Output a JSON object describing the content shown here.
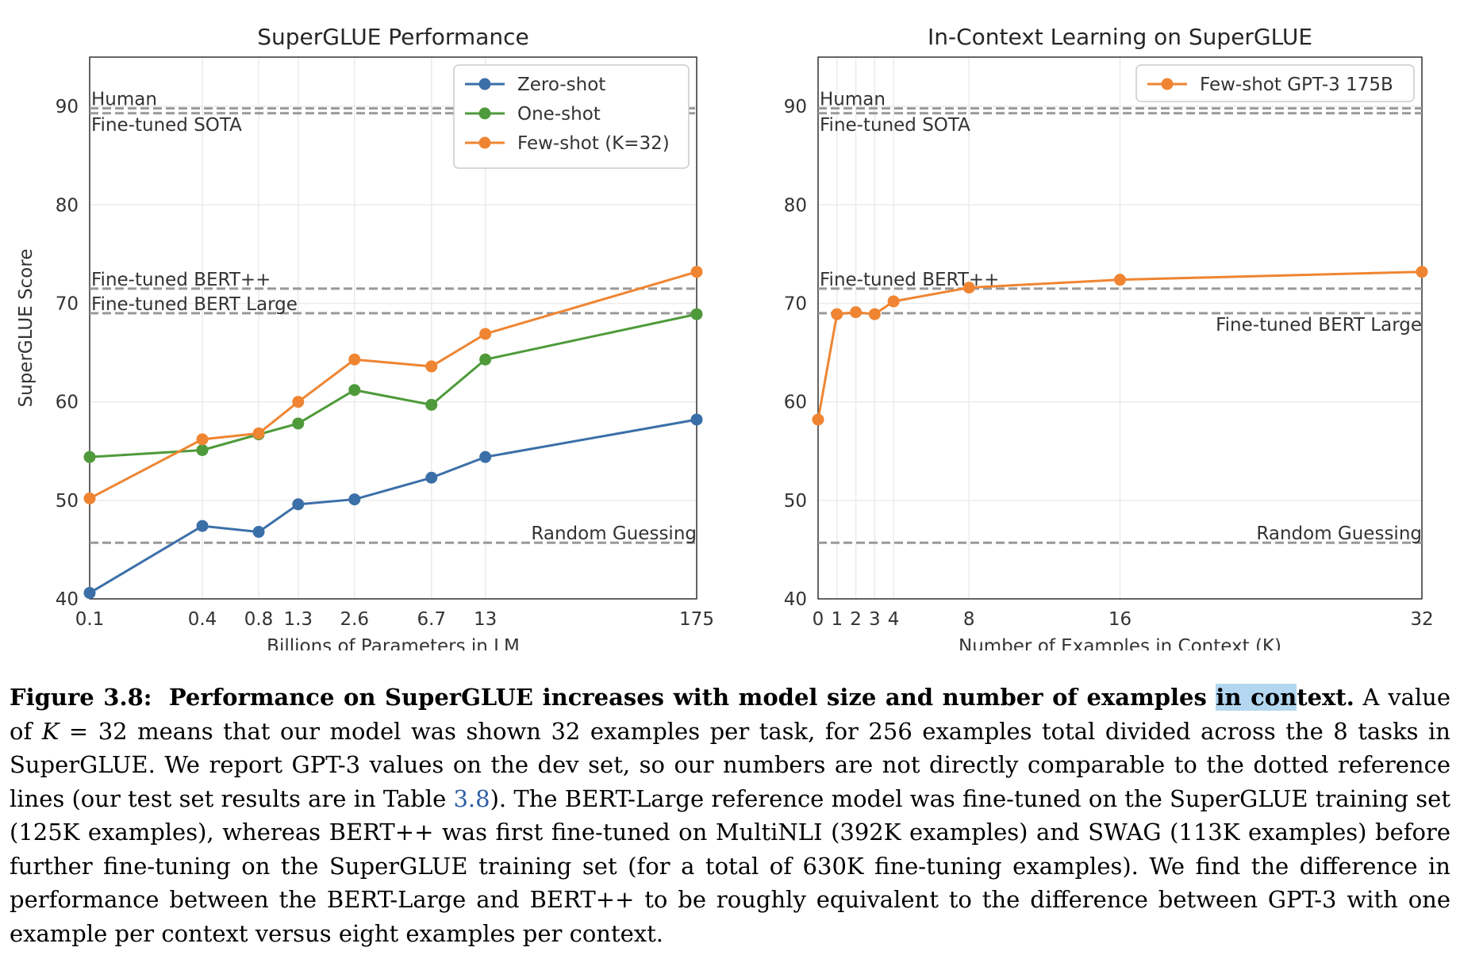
{
  "chart_data": [
    {
      "type": "line",
      "title": "SuperGLUE Performance",
      "xlabel": "Billions of Parameters in LM",
      "ylabel": "SuperGLUE Score",
      "ylim": [
        40,
        95
      ],
      "x_ticks": [
        "0.1",
        "0.4",
        "0.8",
        "1.3",
        "2.6",
        "6.7",
        "13",
        "175"
      ],
      "y_ticks": [
        40,
        50,
        60,
        70,
        80,
        90
      ],
      "x": [
        0.1,
        0.4,
        0.8,
        1.3,
        2.6,
        6.7,
        13,
        175
      ],
      "legend_position": "top-right",
      "series": [
        {
          "name": "Zero-shot",
          "color": "#3b6fa8",
          "values": [
            40.6,
            47.4,
            46.8,
            49.6,
            50.1,
            52.3,
            54.4,
            58.2
          ]
        },
        {
          "name": "One-shot",
          "color": "#4e9a3a",
          "values": [
            54.4,
            55.1,
            56.7,
            57.8,
            61.2,
            59.7,
            64.3,
            68.9
          ]
        },
        {
          "name": "Few-shot (K=32)",
          "color": "#ef8532",
          "values": [
            50.2,
            56.2,
            56.8,
            60.0,
            64.3,
            63.6,
            66.9,
            73.2
          ]
        }
      ],
      "reference_lines": [
        {
          "label": "Human",
          "value": 89.8,
          "label_pos": "top-left"
        },
        {
          "label": "Fine-tuned SOTA",
          "value": 89.3,
          "label_pos": "bottom-left"
        },
        {
          "label": "Fine-tuned BERT++",
          "value": 71.5,
          "label_pos": "top-left"
        },
        {
          "label": "Fine-tuned BERT Large",
          "value": 69.0,
          "label_pos": "top-left"
        },
        {
          "label": "Random Guessing",
          "value": 45.7,
          "label_pos": "top-right"
        }
      ]
    },
    {
      "type": "line",
      "title": "In-Context Learning on SuperGLUE",
      "xlabel": "Number of Examples in Context (K)",
      "ylabel": "",
      "ylim": [
        40,
        95
      ],
      "x_ticks": [
        "0",
        "1",
        "2",
        "3",
        "4",
        "8",
        "16",
        "32"
      ],
      "y_ticks": [
        40,
        50,
        60,
        70,
        80,
        90
      ],
      "x": [
        0,
        1,
        2,
        3,
        4,
        8,
        16,
        32
      ],
      "legend_position": "top-right",
      "series": [
        {
          "name": "Few-shot GPT-3 175B",
          "color": "#ef8532",
          "values": [
            58.2,
            68.9,
            69.1,
            68.9,
            70.2,
            71.6,
            72.4,
            73.2
          ]
        }
      ],
      "reference_lines": [
        {
          "label": "Human",
          "value": 89.8,
          "label_pos": "top-left"
        },
        {
          "label": "Fine-tuned SOTA",
          "value": 89.3,
          "label_pos": "bottom-left"
        },
        {
          "label": "Fine-tuned BERT++",
          "value": 71.5,
          "label_pos": "top-left"
        },
        {
          "label": "Fine-tuned BERT Large",
          "value": 69.0,
          "label_pos": "bottom-right"
        },
        {
          "label": "Random Guessing",
          "value": 45.7,
          "label_pos": "top-right"
        }
      ]
    }
  ],
  "caption": {
    "figure_label": "Figure 3.8:",
    "bold_a": "Performance on SuperGLUE increases with model size and number of examples ",
    "bold_highlight": "in con",
    "bold_b": "text.",
    "t1": " A value of ",
    "k_symbol": "K",
    "t2": " = 32 means that our model was shown 32 examples per task, for 256 examples total divided across the 8 tasks in SuperGLUE. We report GPT-3 values on the dev set, so our numbers are not directly comparable to the dotted reference lines (our test set results are in Table ",
    "table_ref": "3.8",
    "t3": "). The BERT-Large reference model was fine-tuned on the SuperGLUE training set (125K examples), whereas BERT++ was first fine-tuned on MultiNLI (392K examples) and SWAG (113K examples) before further fine-tuning on the SuperGLUE training set (for a total of 630K fine-tuning examples).  We find the difference in performance between the BERT-Large and BERT++ to be roughly equivalent to the difference between GPT-3 with one example per context versus eight examples per context."
  }
}
